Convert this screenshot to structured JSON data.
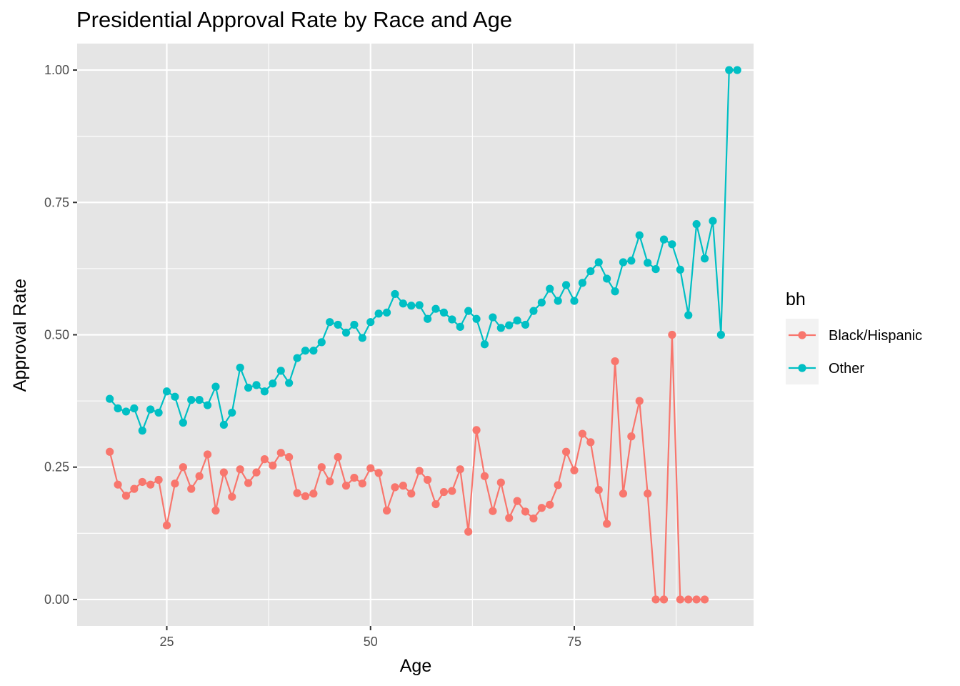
{
  "chart_data": {
    "type": "line",
    "title": "Presidential Approval Rate by Race and Age",
    "xlabel": "Age",
    "ylabel": "Approval Rate",
    "xlim": [
      14,
      97
    ],
    "ylim": [
      -0.05,
      1.05
    ],
    "x_ticks": [
      25,
      50,
      75
    ],
    "x_tick_labels": [
      "25",
      "50",
      "75"
    ],
    "y_ticks": [
      0,
      0.25,
      0.5,
      0.75,
      1.0
    ],
    "y_tick_labels": [
      "0.00",
      "0.25",
      "0.50",
      "0.75",
      "1.00"
    ],
    "grid": true,
    "panel_background": "#e5e5e5",
    "grid_color": "#ffffff",
    "legend": {
      "title": "bh",
      "placement": "right"
    },
    "series": [
      {
        "name": "Black/Hispanic",
        "color": "#f8766d",
        "x": [
          18,
          19,
          20,
          21,
          22,
          23,
          24,
          25,
          26,
          27,
          28,
          29,
          30,
          31,
          32,
          33,
          34,
          35,
          36,
          37,
          38,
          39,
          40,
          41,
          42,
          43,
          44,
          45,
          46,
          47,
          48,
          49,
          50,
          51,
          52,
          53,
          54,
          55,
          56,
          57,
          58,
          59,
          60,
          61,
          62,
          63,
          64,
          65,
          66,
          67,
          68,
          69,
          70,
          71,
          72,
          73,
          74,
          75,
          76,
          77,
          78,
          79,
          80,
          81,
          82,
          83,
          84,
          85,
          86,
          87,
          88,
          89,
          90,
          91
        ],
        "y": [
          0.279,
          0.217,
          0.196,
          0.209,
          0.222,
          0.217,
          0.226,
          0.14,
          0.219,
          0.25,
          0.209,
          0.233,
          0.274,
          0.168,
          0.24,
          0.194,
          0.246,
          0.22,
          0.24,
          0.265,
          0.253,
          0.277,
          0.269,
          0.201,
          0.195,
          0.2,
          0.25,
          0.223,
          0.269,
          0.215,
          0.23,
          0.219,
          0.248,
          0.239,
          0.168,
          0.212,
          0.215,
          0.2,
          0.243,
          0.226,
          0.18,
          0.203,
          0.205,
          0.246,
          0.128,
          0.32,
          0.233,
          0.167,
          0.221,
          0.154,
          0.186,
          0.166,
          0.153,
          0.173,
          0.179,
          0.216,
          0.279,
          0.244,
          0.313,
          0.297,
          0.207,
          0.143,
          0.45,
          0.2,
          0.308,
          0.375,
          0.2,
          0.0,
          0.0,
          0.5,
          0.0,
          0.0,
          0.0,
          0.0
        ]
      },
      {
        "name": "Other",
        "color": "#00bfc4",
        "x": [
          18,
          19,
          20,
          21,
          22,
          23,
          24,
          25,
          26,
          27,
          28,
          29,
          30,
          31,
          32,
          33,
          34,
          35,
          36,
          37,
          38,
          39,
          40,
          41,
          42,
          43,
          44,
          45,
          46,
          47,
          48,
          49,
          50,
          51,
          52,
          53,
          54,
          55,
          56,
          57,
          58,
          59,
          60,
          61,
          62,
          63,
          64,
          65,
          66,
          67,
          68,
          69,
          70,
          71,
          72,
          73,
          74,
          75,
          76,
          77,
          78,
          79,
          80,
          81,
          82,
          83,
          84,
          85,
          86,
          87,
          88,
          89,
          90,
          91,
          92,
          93,
          94,
          95
        ],
        "y": [
          0.379,
          0.361,
          0.355,
          0.361,
          0.319,
          0.359,
          0.353,
          0.393,
          0.383,
          0.334,
          0.377,
          0.377,
          0.367,
          0.402,
          0.33,
          0.353,
          0.438,
          0.4,
          0.405,
          0.393,
          0.408,
          0.432,
          0.409,
          0.456,
          0.47,
          0.47,
          0.486,
          0.524,
          0.519,
          0.504,
          0.519,
          0.494,
          0.524,
          0.54,
          0.542,
          0.577,
          0.559,
          0.555,
          0.556,
          0.53,
          0.549,
          0.542,
          0.529,
          0.515,
          0.545,
          0.53,
          0.482,
          0.533,
          0.513,
          0.518,
          0.527,
          0.519,
          0.545,
          0.561,
          0.587,
          0.564,
          0.594,
          0.564,
          0.598,
          0.62,
          0.637,
          0.606,
          0.582,
          0.637,
          0.64,
          0.688,
          0.636,
          0.624,
          0.68,
          0.671,
          0.623,
          0.537,
          0.709,
          0.644,
          0.715,
          0.5,
          1.0,
          1.0
        ]
      }
    ]
  }
}
